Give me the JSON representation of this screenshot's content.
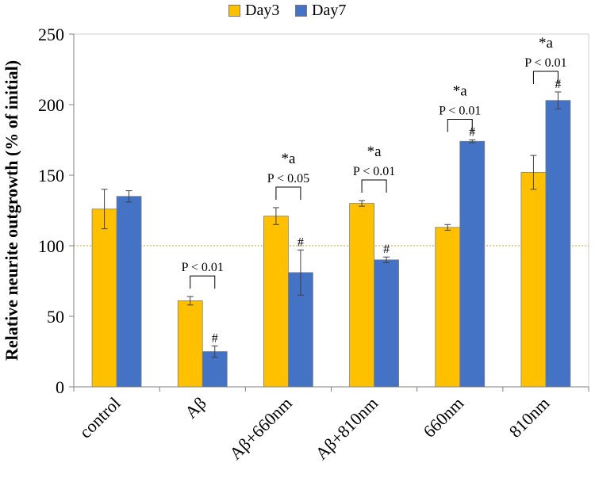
{
  "chart_data": {
    "type": "bar",
    "title": "",
    "xlabel": "",
    "ylabel": "Relative neurite outgrowth (% of initial)",
    "ylim": [
      0,
      250
    ],
    "yticks": [
      0,
      50,
      100,
      150,
      200,
      250
    ],
    "reference_line": 100,
    "categories": [
      "control",
      "Aβ",
      "Aβ+660nm",
      "Aβ+810nm",
      "660nm",
      "810nm"
    ],
    "series": [
      {
        "name": "Day3",
        "color": "#FFC000",
        "values": [
          126,
          61,
          121,
          130,
          113,
          152
        ],
        "errors": [
          14,
          3,
          6,
          2,
          2,
          12
        ]
      },
      {
        "name": "Day7",
        "color": "#4472C4",
        "values": [
          135,
          25,
          81,
          90,
          174,
          203
        ],
        "errors": [
          4,
          4,
          16,
          2,
          1,
          6
        ]
      }
    ],
    "annotations": [
      {
        "category": "Aβ",
        "p_text": "P < 0.01",
        "star_text": "",
        "hash": "#"
      },
      {
        "category": "Aβ+660nm",
        "p_text": "P < 0.05",
        "star_text": "*a",
        "hash": "#"
      },
      {
        "category": "Aβ+810nm",
        "p_text": "P < 0.01",
        "star_text": "*a",
        "hash": "#"
      },
      {
        "category": "660nm",
        "p_text": "P < 0.01",
        "star_text": "*a",
        "hash": "#"
      },
      {
        "category": "810nm",
        "p_text": "P < 0.01",
        "star_text": "*a",
        "hash": "#"
      }
    ],
    "legend": {
      "position": "top-center"
    }
  }
}
